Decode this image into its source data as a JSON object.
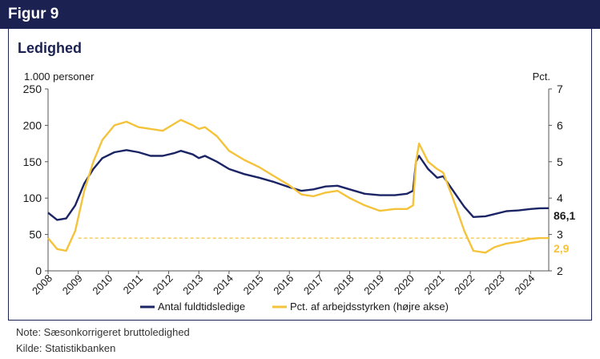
{
  "figure_label": "Figur 9",
  "title": "Ledighed",
  "note": "Note:  Sæsonkorrigeret bruttoledighed",
  "source": "Kilde:  Statistikbanken",
  "colors": {
    "header": "#1b2150",
    "series_left": "#1b2464",
    "series_right": "#f5c33b"
  },
  "chart_data": {
    "type": "line",
    "y_left_label": "1.000 personer",
    "y_right_label": "Pct.",
    "y_left_ticks": [
      "0",
      "50",
      "100",
      "150",
      "200",
      "250"
    ],
    "y_right_ticks": [
      "2",
      "3",
      "4",
      "5",
      "6",
      "7"
    ],
    "ylim_left": [
      0,
      250
    ],
    "ylim_right": [
      2,
      7
    ],
    "xlim": [
      2008,
      2024.6
    ],
    "x_tick_labels": [
      "2008",
      "2009",
      "2010",
      "2011",
      "2012",
      "2013",
      "2014",
      "2015",
      "2016",
      "2017",
      "2018",
      "2019",
      "2020",
      "2021",
      "2022",
      "2023",
      "2024"
    ],
    "grid": false,
    "legend_position": "bottom",
    "series": [
      {
        "name": "Antal fuldtidsledige",
        "axis": "left",
        "end_label": "86,1",
        "points": [
          [
            2008.0,
            80
          ],
          [
            2008.3,
            70
          ],
          [
            2008.6,
            72
          ],
          [
            2008.9,
            90
          ],
          [
            2009.2,
            120
          ],
          [
            2009.5,
            140
          ],
          [
            2009.8,
            155
          ],
          [
            2010.2,
            163
          ],
          [
            2010.6,
            166
          ],
          [
            2011.0,
            163
          ],
          [
            2011.4,
            158
          ],
          [
            2011.8,
            158
          ],
          [
            2012.2,
            162
          ],
          [
            2012.4,
            165
          ],
          [
            2012.8,
            160
          ],
          [
            2013.0,
            155
          ],
          [
            2013.2,
            158
          ],
          [
            2013.6,
            150
          ],
          [
            2014.0,
            140
          ],
          [
            2014.5,
            133
          ],
          [
            2015.0,
            128
          ],
          [
            2015.5,
            122
          ],
          [
            2016.0,
            115
          ],
          [
            2016.4,
            110
          ],
          [
            2016.8,
            112
          ],
          [
            2017.2,
            116
          ],
          [
            2017.6,
            117
          ],
          [
            2018.0,
            112
          ],
          [
            2018.5,
            106
          ],
          [
            2019.0,
            104
          ],
          [
            2019.5,
            104
          ],
          [
            2019.9,
            106
          ],
          [
            2020.1,
            110
          ],
          [
            2020.2,
            150
          ],
          [
            2020.3,
            158
          ],
          [
            2020.6,
            140
          ],
          [
            2020.9,
            128
          ],
          [
            2021.1,
            130
          ],
          [
            2021.4,
            112
          ],
          [
            2021.8,
            88
          ],
          [
            2022.1,
            74
          ],
          [
            2022.5,
            75
          ],
          [
            2022.8,
            78
          ],
          [
            2023.2,
            82
          ],
          [
            2023.6,
            83
          ],
          [
            2024.0,
            85
          ],
          [
            2024.3,
            86
          ],
          [
            2024.6,
            86.1
          ]
        ]
      },
      {
        "name": "Pct. af arbejdsstyrken (højre akse)",
        "axis": "right",
        "end_label": "2,9",
        "points": [
          [
            2008.0,
            2.9
          ],
          [
            2008.3,
            2.6
          ],
          [
            2008.6,
            2.55
          ],
          [
            2008.9,
            3.1
          ],
          [
            2009.2,
            4.2
          ],
          [
            2009.5,
            5.0
          ],
          [
            2009.8,
            5.6
          ],
          [
            2010.2,
            6.0
          ],
          [
            2010.6,
            6.1
          ],
          [
            2011.0,
            5.95
          ],
          [
            2011.4,
            5.9
          ],
          [
            2011.8,
            5.85
          ],
          [
            2012.2,
            6.05
          ],
          [
            2012.4,
            6.15
          ],
          [
            2012.8,
            6.0
          ],
          [
            2013.0,
            5.9
          ],
          [
            2013.2,
            5.95
          ],
          [
            2013.6,
            5.7
          ],
          [
            2014.0,
            5.3
          ],
          [
            2014.5,
            5.05
          ],
          [
            2015.0,
            4.85
          ],
          [
            2015.5,
            4.6
          ],
          [
            2016.0,
            4.35
          ],
          [
            2016.4,
            4.1
          ],
          [
            2016.8,
            4.05
          ],
          [
            2017.2,
            4.15
          ],
          [
            2017.6,
            4.2
          ],
          [
            2018.0,
            4.0
          ],
          [
            2018.5,
            3.8
          ],
          [
            2019.0,
            3.65
          ],
          [
            2019.5,
            3.7
          ],
          [
            2019.9,
            3.7
          ],
          [
            2020.1,
            3.8
          ],
          [
            2020.2,
            5.0
          ],
          [
            2020.3,
            5.5
          ],
          [
            2020.6,
            5.0
          ],
          [
            2020.9,
            4.8
          ],
          [
            2021.1,
            4.7
          ],
          [
            2021.4,
            4.05
          ],
          [
            2021.8,
            3.1
          ],
          [
            2022.1,
            2.55
          ],
          [
            2022.5,
            2.5
          ],
          [
            2022.8,
            2.65
          ],
          [
            2023.2,
            2.75
          ],
          [
            2023.6,
            2.8
          ],
          [
            2024.0,
            2.88
          ],
          [
            2024.3,
            2.9
          ],
          [
            2024.6,
            2.9
          ]
        ]
      }
    ],
    "reference_lines": [
      {
        "axis": "right",
        "value": 2.9,
        "style": "dashed"
      }
    ]
  }
}
